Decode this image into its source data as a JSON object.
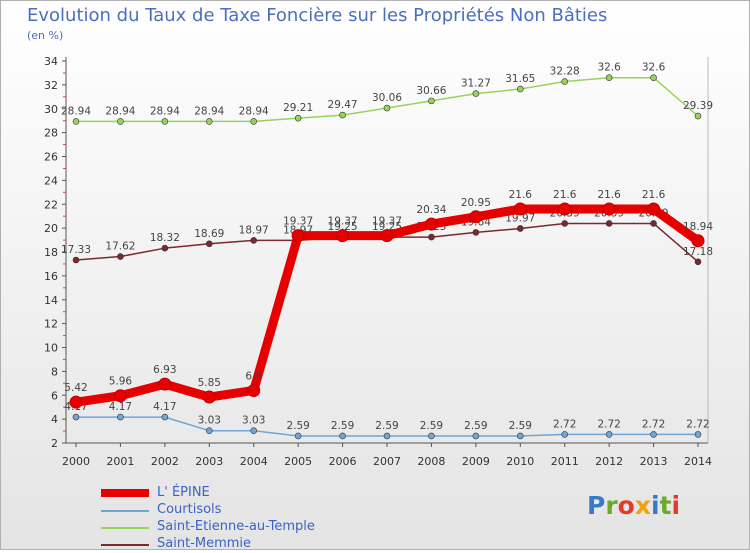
{
  "title": "Evolution du Taux de Taxe Foncière sur les Propriétés Non Bâties",
  "subtitle": "(en %)",
  "logo": {
    "text": "Proxiti",
    "letter_colors": [
      "#3a79c6",
      "#6aaa2c",
      "#e23b2c",
      "#f2a20b",
      "#3a79c6",
      "#6aaa2c",
      "#e23b2c"
    ]
  },
  "chart_data": {
    "type": "line",
    "title": "Evolution du Taux de Taxe Foncière sur les Propriétés Non Bâties",
    "ylabel": "(en %)",
    "x": [
      "2000",
      "2001",
      "2002",
      "2003",
      "2004",
      "2005",
      "2006",
      "2007",
      "2008",
      "2009",
      "2010",
      "2011",
      "2012",
      "2013",
      "2014"
    ],
    "ylim": [
      2,
      34
    ],
    "yticks": [
      2,
      4,
      6,
      8,
      10,
      12,
      14,
      16,
      18,
      20,
      22,
      24,
      26,
      28,
      30,
      32,
      34
    ],
    "grid": false,
    "legend_position": "bottom-left",
    "series": [
      {
        "name": "L' ÉPINE",
        "color": "#e60000",
        "values": [
          5.42,
          5.96,
          6.93,
          5.85,
          6.4,
          19.37,
          19.37,
          19.37,
          20.34,
          20.95,
          21.6,
          21.6,
          21.6,
          21.6,
          18.94
        ],
        "labels": [
          "5.42",
          "5.96",
          "6.93",
          "5.85",
          "6.4",
          "19.37",
          "19.37",
          "19.37",
          "20.34",
          "20.95",
          "21.6",
          "21.6",
          "21.6",
          "21.6",
          "18.94"
        ]
      },
      {
        "name": "Courtisols",
        "color": "#6fa6d6",
        "values": [
          4.17,
          4.17,
          4.17,
          3.03,
          3.03,
          2.59,
          2.59,
          2.59,
          2.59,
          2.59,
          2.59,
          2.72,
          2.72,
          2.72,
          2.72
        ],
        "labels": [
          "4.17",
          "4.17",
          "4.17",
          "3.03",
          "3.03",
          "2.59",
          "2.59",
          "2.59",
          "2.59",
          "2.59",
          "2.59",
          "2.72",
          "2.72",
          "2.72",
          "2.72"
        ]
      },
      {
        "name": "Saint-Etienne-au-Temple",
        "color": "#95d45a",
        "values": [
          28.94,
          28.94,
          28.94,
          28.94,
          28.94,
          29.21,
          29.47,
          30.06,
          30.66,
          31.27,
          31.65,
          32.28,
          32.6,
          32.6,
          29.39
        ],
        "labels": [
          "28.94",
          "28.94",
          "28.94",
          "28.94",
          "28.94",
          "29.21",
          "29.47",
          "30.06",
          "30.66",
          "31.27",
          "31.65",
          "32.28",
          "32.6",
          "32.6",
          "29.39"
        ]
      },
      {
        "name": "Saint-Memmie",
        "color": "#7a2a2a",
        "values": [
          17.33,
          17.62,
          18.32,
          18.69,
          18.97,
          18.97,
          19.25,
          19.25,
          19.25,
          19.64,
          19.97,
          20.39,
          20.39,
          20.39,
          17.18
        ],
        "labels": [
          "17.33",
          "17.62",
          "18.32",
          "18.69",
          "18.97",
          "18.97",
          "19.25",
          "19.25",
          "19.25",
          "19.64",
          "19.97",
          "20.39",
          "20.39",
          "20.39",
          "17.18"
        ]
      }
    ]
  }
}
